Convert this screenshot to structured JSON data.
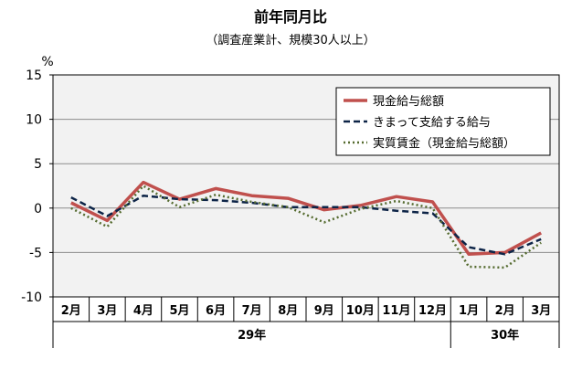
{
  "chart_data": {
    "type": "line",
    "title": "前年同月比",
    "subtitle": "（調査産業計、規模30人以上）",
    "ylabel": "%",
    "ylim": [
      -10,
      15
    ],
    "yticks": [
      "15",
      "10",
      "5",
      "0",
      "-5",
      "-10"
    ],
    "grid": true,
    "legend": "top-right",
    "categories": [
      "2月",
      "3月",
      "4月",
      "5月",
      "6月",
      "7月",
      "8月",
      "9月",
      "10月",
      "11月",
      "12月",
      "1月",
      "2月",
      "3月"
    ],
    "year_groups": [
      {
        "label": "29年",
        "span": 11
      },
      {
        "label": "30年",
        "span": 3
      }
    ],
    "series": [
      {
        "name": "現金給与総額",
        "color": "#c0504d",
        "style": "solid",
        "values": [
          0.6,
          -1.4,
          2.9,
          1.0,
          2.2,
          1.4,
          1.1,
          -0.2,
          0.3,
          1.3,
          0.7,
          -5.2,
          -5.0,
          -2.8
        ]
      },
      {
        "name": "きまって支給する給与",
        "color": "#0d2447",
        "style": "dashed",
        "values": [
          1.2,
          -0.9,
          1.4,
          1.0,
          0.9,
          0.6,
          0.1,
          0.1,
          0.1,
          -0.3,
          -0.6,
          -4.4,
          -5.2,
          -3.5
        ]
      },
      {
        "name": "実質賃金（現金給与総額）",
        "color": "#556b2f",
        "style": "dotted",
        "values": [
          0.0,
          -2.1,
          2.5,
          0.1,
          1.5,
          0.7,
          0.1,
          -1.6,
          -0.1,
          0.8,
          0.0,
          -6.6,
          -6.7,
          -3.9
        ]
      }
    ]
  }
}
